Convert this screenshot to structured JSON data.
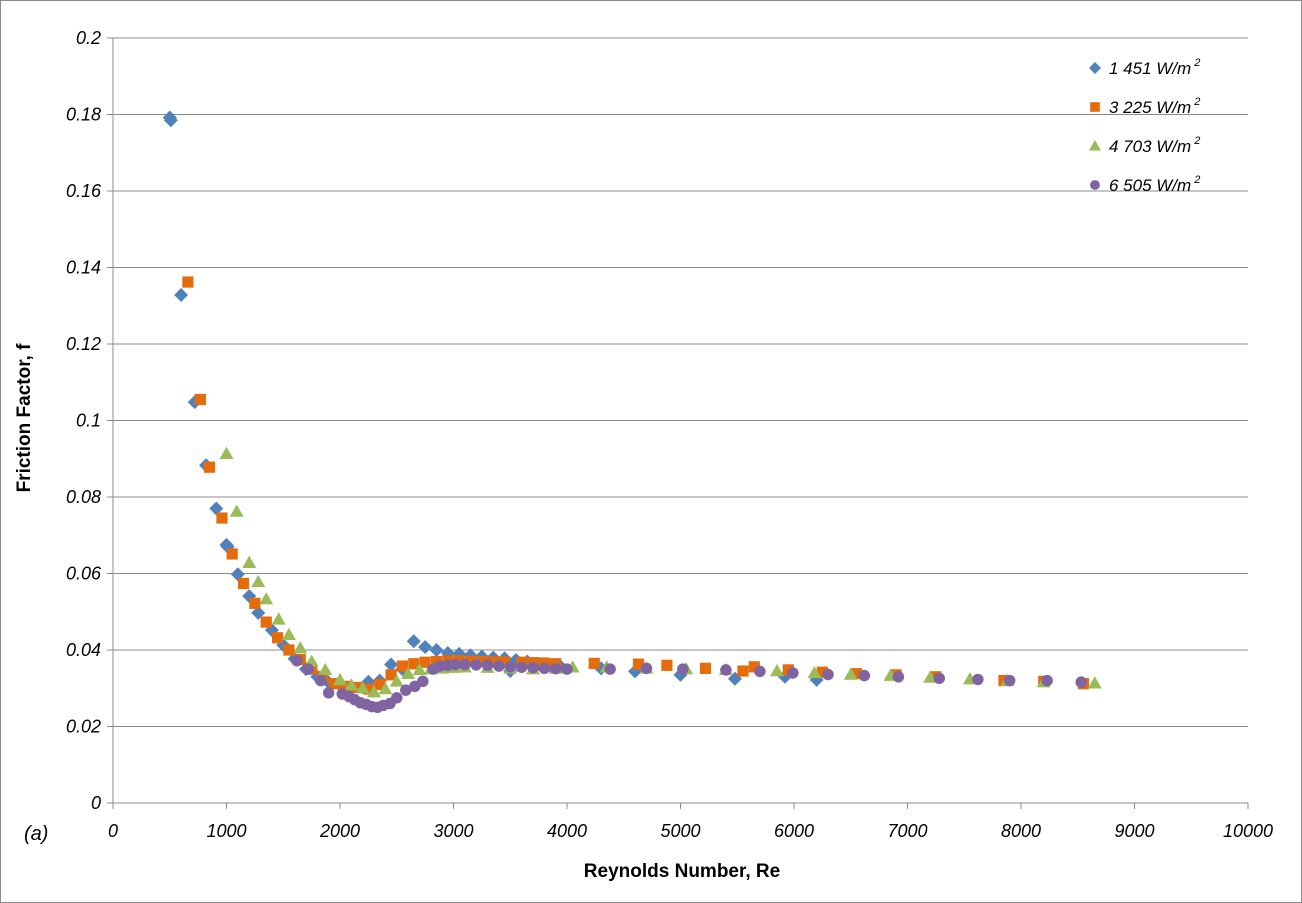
{
  "chart_data": {
    "type": "scatter",
    "panel_label": "(a)",
    "xlabel": "Reynolds Number, Re",
    "ylabel": "Friction Factor, f",
    "xlim": [
      0,
      10000
    ],
    "ylim": [
      0,
      0.2
    ],
    "xticks": [
      "0",
      "1000",
      "2000",
      "3000",
      "4000",
      "5000",
      "6000",
      "7000",
      "8000",
      "9000",
      "10000"
    ],
    "yticks": [
      "0",
      "0.02",
      "0.04",
      "0.06",
      "0.08",
      "0.1",
      "0.12",
      "0.14",
      "0.16",
      "0.18",
      "0.2"
    ],
    "grid": "horizontal",
    "legend_position": "top-right",
    "colors": {
      "s1": "#4f81bd",
      "s2": "#e46c0a",
      "s3": "#9bbb59",
      "s4": "#8064a2"
    },
    "series": [
      {
        "name": "1 451 W/m",
        "name_sup": "2",
        "marker": "diamond",
        "points": [
          [
            500,
            0.1792
          ],
          [
            510,
            0.1785
          ],
          [
            600,
            0.1328
          ],
          [
            720,
            0.1048
          ],
          [
            820,
            0.0883
          ],
          [
            910,
            0.077
          ],
          [
            1000,
            0.0675
          ],
          [
            1010,
            0.067
          ],
          [
            1100,
            0.0598
          ],
          [
            1200,
            0.0541
          ],
          [
            1280,
            0.0497
          ],
          [
            1400,
            0.0452
          ],
          [
            1500,
            0.0413
          ],
          [
            1600,
            0.0377
          ],
          [
            1700,
            0.035
          ],
          [
            1800,
            0.033
          ],
          [
            1900,
            0.0315
          ],
          [
            2000,
            0.031
          ],
          [
            2100,
            0.03
          ],
          [
            2250,
            0.0317
          ],
          [
            2350,
            0.032
          ],
          [
            2450,
            0.0362
          ],
          [
            2550,
            0.035
          ],
          [
            2650,
            0.0423
          ],
          [
            2750,
            0.0408
          ],
          [
            2850,
            0.04
          ],
          [
            2950,
            0.0392
          ],
          [
            3050,
            0.039
          ],
          [
            3150,
            0.0386
          ],
          [
            3250,
            0.0383
          ],
          [
            3350,
            0.038
          ],
          [
            3450,
            0.0378
          ],
          [
            3500,
            0.0345
          ],
          [
            3550,
            0.0374
          ],
          [
            3650,
            0.037
          ],
          [
            3750,
            0.0363
          ],
          [
            3850,
            0.0358
          ],
          [
            3950,
            0.0355
          ],
          [
            4300,
            0.0352
          ],
          [
            4600,
            0.0344
          ],
          [
            5000,
            0.0335
          ],
          [
            5480,
            0.0325
          ],
          [
            5920,
            0.033
          ],
          [
            6200,
            0.0322
          ]
        ]
      },
      {
        "name": "3 225 W/m",
        "name_sup": "2",
        "marker": "square",
        "points": [
          [
            660,
            0.1362
          ],
          [
            770,
            0.1055
          ],
          [
            850,
            0.0878
          ],
          [
            960,
            0.0745
          ],
          [
            1050,
            0.0651
          ],
          [
            1150,
            0.0574
          ],
          [
            1250,
            0.0522
          ],
          [
            1350,
            0.0473
          ],
          [
            1450,
            0.0432
          ],
          [
            1550,
            0.04
          ],
          [
            1650,
            0.0375
          ],
          [
            1750,
            0.035
          ],
          [
            1850,
            0.033
          ],
          [
            1950,
            0.0312
          ],
          [
            2050,
            0.0305
          ],
          [
            2150,
            0.0302
          ],
          [
            2250,
            0.0298
          ],
          [
            2350,
            0.031
          ],
          [
            2450,
            0.0335
          ],
          [
            2550,
            0.0358
          ],
          [
            2650,
            0.0364
          ],
          [
            2750,
            0.0368
          ],
          [
            2850,
            0.037
          ],
          [
            2950,
            0.0372
          ],
          [
            3050,
            0.0372
          ],
          [
            3150,
            0.0371
          ],
          [
            3250,
            0.037
          ],
          [
            3350,
            0.0369
          ],
          [
            3450,
            0.0369
          ],
          [
            3600,
            0.0368
          ],
          [
            3700,
            0.0367
          ],
          [
            3800,
            0.0366
          ],
          [
            3900,
            0.0364
          ],
          [
            4240,
            0.0365
          ],
          [
            4630,
            0.0363
          ],
          [
            4880,
            0.036
          ],
          [
            5220,
            0.0352
          ],
          [
            5550,
            0.0345
          ],
          [
            5650,
            0.0356
          ],
          [
            5950,
            0.0348
          ],
          [
            6250,
            0.0342
          ],
          [
            6550,
            0.0338
          ],
          [
            6900,
            0.0335
          ],
          [
            7250,
            0.033
          ],
          [
            7850,
            0.032
          ],
          [
            8200,
            0.0318
          ],
          [
            8550,
            0.0312
          ]
        ]
      },
      {
        "name": "4 703 W/m",
        "name_sup": "2",
        "marker": "triangle",
        "points": [
          [
            1000,
            0.0913
          ],
          [
            1090,
            0.0762
          ],
          [
            1200,
            0.0628
          ],
          [
            1280,
            0.0578
          ],
          [
            1350,
            0.0533
          ],
          [
            1460,
            0.048
          ],
          [
            1550,
            0.044
          ],
          [
            1650,
            0.0405
          ],
          [
            1750,
            0.037
          ],
          [
            1870,
            0.0348
          ],
          [
            2000,
            0.0322
          ],
          [
            2100,
            0.0308
          ],
          [
            2200,
            0.03
          ],
          [
            2300,
            0.029
          ],
          [
            2400,
            0.0298
          ],
          [
            2500,
            0.0318
          ],
          [
            2600,
            0.0338
          ],
          [
            2700,
            0.0348
          ],
          [
            2800,
            0.035
          ],
          [
            2900,
            0.0352
          ],
          [
            3000,
            0.0354
          ],
          [
            3100,
            0.0355
          ],
          [
            3300,
            0.0354
          ],
          [
            3500,
            0.0352
          ],
          [
            3700,
            0.035
          ],
          [
            3900,
            0.0352
          ],
          [
            4050,
            0.0355
          ],
          [
            4350,
            0.0355
          ],
          [
            4700,
            0.0352
          ],
          [
            5050,
            0.035
          ],
          [
            5400,
            0.0348
          ],
          [
            5850,
            0.0345
          ],
          [
            6180,
            0.034
          ],
          [
            6500,
            0.0336
          ],
          [
            6850,
            0.0333
          ],
          [
            7200,
            0.0328
          ],
          [
            7550,
            0.0324
          ],
          [
            7880,
            0.032
          ],
          [
            8200,
            0.0316
          ],
          [
            8650,
            0.0313
          ]
        ]
      },
      {
        "name": "6 505 W/m",
        "name_sup": "2",
        "marker": "circle",
        "points": [
          [
            1620,
            0.0372
          ],
          [
            1720,
            0.035
          ],
          [
            1830,
            0.032
          ],
          [
            1900,
            0.0288
          ],
          [
            2020,
            0.0285
          ],
          [
            2080,
            0.0278
          ],
          [
            2130,
            0.027
          ],
          [
            2180,
            0.0262
          ],
          [
            2230,
            0.0258
          ],
          [
            2280,
            0.0252
          ],
          [
            2330,
            0.025
          ],
          [
            2380,
            0.0255
          ],
          [
            2440,
            0.026
          ],
          [
            2500,
            0.0275
          ],
          [
            2580,
            0.0295
          ],
          [
            2660,
            0.0305
          ],
          [
            2730,
            0.0318
          ],
          [
            2820,
            0.035
          ],
          [
            2880,
            0.0358
          ],
          [
            2950,
            0.036
          ],
          [
            3020,
            0.0362
          ],
          [
            3100,
            0.0362
          ],
          [
            3200,
            0.0361
          ],
          [
            3300,
            0.036
          ],
          [
            3400,
            0.0358
          ],
          [
            3500,
            0.0356
          ],
          [
            3600,
            0.0355
          ],
          [
            3700,
            0.0354
          ],
          [
            3800,
            0.0352
          ],
          [
            3900,
            0.0351
          ],
          [
            4000,
            0.035
          ],
          [
            4380,
            0.035
          ],
          [
            4700,
            0.0352
          ],
          [
            5020,
            0.035
          ],
          [
            5400,
            0.0348
          ],
          [
            5700,
            0.0344
          ],
          [
            5990,
            0.034
          ],
          [
            6300,
            0.0336
          ],
          [
            6620,
            0.0333
          ],
          [
            6920,
            0.033
          ],
          [
            7280,
            0.0326
          ],
          [
            7620,
            0.0323
          ],
          [
            7900,
            0.032
          ],
          [
            8230,
            0.032
          ],
          [
            8530,
            0.0316
          ]
        ]
      }
    ]
  }
}
